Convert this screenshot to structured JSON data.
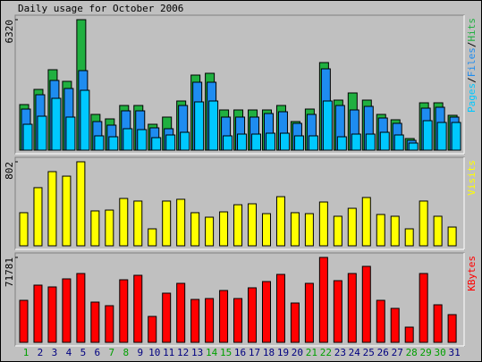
{
  "chart_data": [
    {
      "type": "bar",
      "title": "Daily usage for October 2006",
      "ylim": [
        0,
        6320
      ],
      "yticks": [
        6320
      ],
      "legend_separator": "/",
      "series": [
        {
          "name": "Hits",
          "color": "#20b040",
          "values": [
            2208,
            2943,
            3896,
            3333,
            6320,
            1732,
            1515,
            2164,
            2164,
            1255,
            1602,
            2381,
            3636,
            3723,
            1948,
            1948,
            1948,
            1948,
            2164,
            1385,
            1991,
            4242,
            2424,
            2771,
            2424,
            1732,
            1472,
            563,
            2294,
            2294,
            1688
          ]
        },
        {
          "name": "Files",
          "color": "#1e8cf0",
          "values": [
            1991,
            2684,
            3377,
            2987,
            3853,
            1385,
            1212,
            1905,
            1905,
            1082,
            1039,
            2164,
            3290,
            3290,
            1602,
            1602,
            1602,
            1775,
            1861,
            1299,
            1732,
            3939,
            2164,
            1948,
            2121,
            1558,
            1299,
            476,
            2034,
            2078,
            1602
          ]
        },
        {
          "name": "Pages",
          "color": "#00c8ff",
          "values": [
            1255,
            1645,
            2511,
            1602,
            2900,
            693,
            649,
            1039,
            996,
            606,
            736,
            866,
            2338,
            2381,
            693,
            779,
            779,
            822,
            822,
            693,
            693,
            2381,
            649,
            779,
            779,
            866,
            736,
            346,
            1428,
            1342,
            1342
          ]
        }
      ]
    },
    {
      "type": "bar",
      "ylim": [
        0,
        802
      ],
      "yticks": [
        802
      ],
      "series": [
        {
          "name": "Visits",
          "color": "#ffff00",
          "values": [
            316,
            555,
            708,
            665,
            802,
            333,
            341,
            452,
            427,
            162,
            427,
            444,
            316,
            273,
            324,
            392,
            401,
            307,
            469,
            316,
            307,
            418,
            282,
            358,
            461,
            299,
            282,
            162,
            427,
            282,
            179
          ]
        }
      ]
    },
    {
      "type": "bar",
      "ylim": [
        0,
        71781
      ],
      "yticks": [
        71781
      ],
      "categories": [
        "1",
        "2",
        "3",
        "4",
        "5",
        "6",
        "7",
        "8",
        "9",
        "10",
        "11",
        "12",
        "13",
        "14",
        "15",
        "16",
        "17",
        "18",
        "19",
        "20",
        "21",
        "22",
        "23",
        "24",
        "25",
        "26",
        "27",
        "28",
        "29",
        "30",
        "31"
      ],
      "category_colors": [
        "#00a000",
        "#000080",
        "#000080",
        "#000080",
        "#000080",
        "#000080",
        "#00a000",
        "#00a000",
        "#000080",
        "#000080",
        "#000080",
        "#000080",
        "#000080",
        "#00a000",
        "#00a000",
        "#000080",
        "#000080",
        "#000080",
        "#000080",
        "#000080",
        "#00a000",
        "#00a000",
        "#000080",
        "#000080",
        "#000080",
        "#000080",
        "#000080",
        "#00a000",
        "#00a000",
        "#00a000",
        "#000080"
      ],
      "series": [
        {
          "name": "KBytes",
          "color": "#ff0000",
          "values": [
            35512,
            48357,
            46846,
            53647,
            58180,
            34001,
            30979,
            52891,
            56669,
            21912,
            41557,
            49868,
            36268,
            37024,
            43824,
            37024,
            46091,
            51380,
            57425,
            33246,
            49868,
            71781,
            52135,
            58180,
            64225,
            35512,
            28713,
            12845,
            58180,
            31735,
            23423
          ]
        }
      ]
    }
  ]
}
